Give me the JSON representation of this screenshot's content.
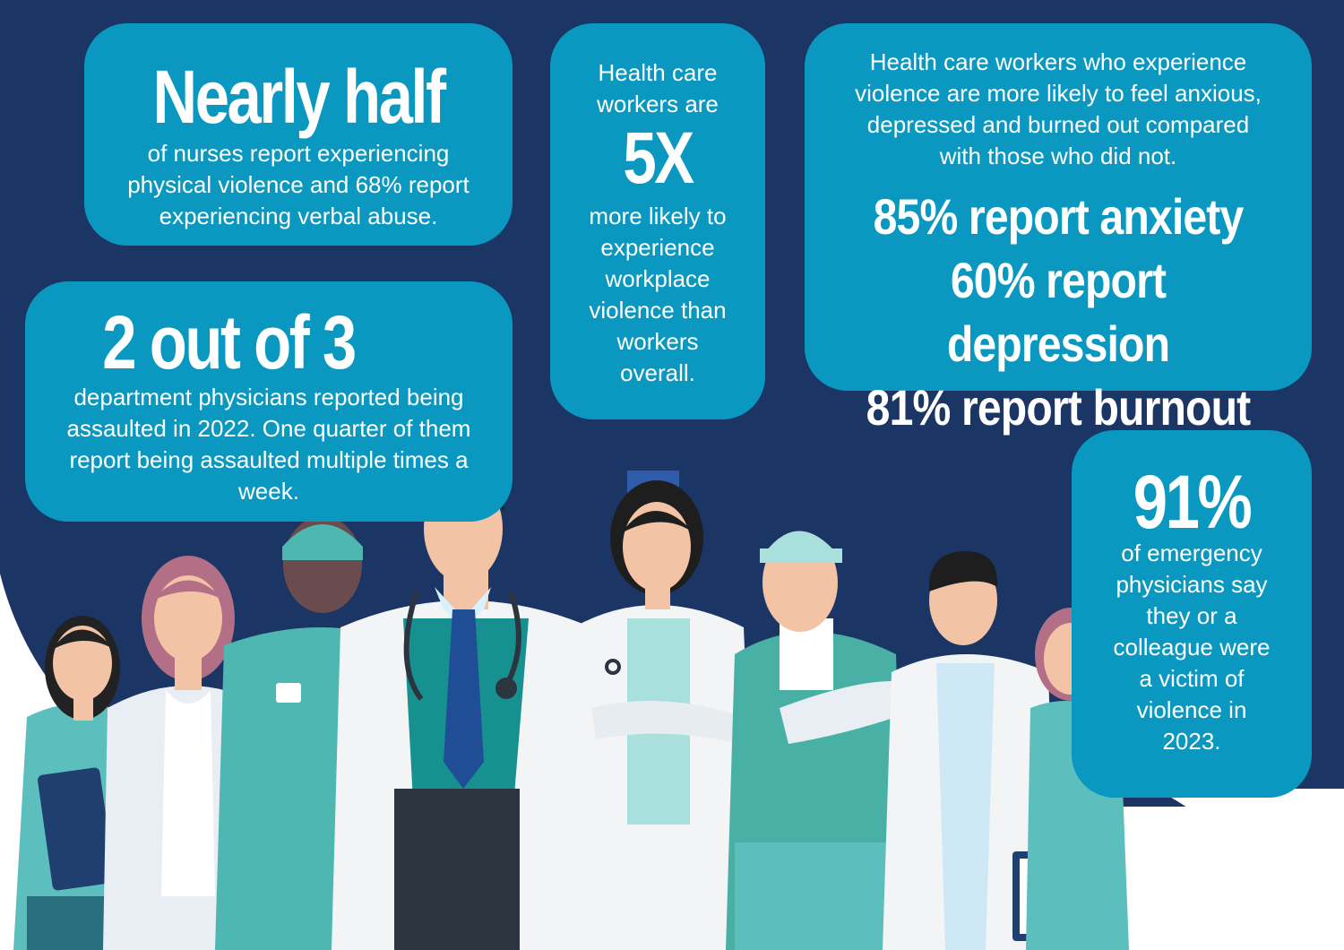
{
  "colors": {
    "background": "#1b3664",
    "callout_box": "#0a98c0",
    "text": "#ffffff",
    "scrubs_teal": "#5dbfbd",
    "coat_white": "#f2f4f5"
  },
  "nearly_half": {
    "headline": "Nearly half",
    "text": "of nurses report experiencing physical violence and 68% report experiencing verbal abuse."
  },
  "two_of_three": {
    "headline": "2 out of 3",
    "text": "department physicians reported being assaulted in 2022. One quarter of them report being assaulted multiple times a week."
  },
  "five_x": {
    "intro": "Health care workers are",
    "headline": "5X",
    "text": "more likely to experience workplace violence than workers overall."
  },
  "mental_health": {
    "intro": "Health care workers who experience violence are more likely to feel anxious, depressed and burned out compared with those who did not.",
    "stats": [
      "85% report anxiety",
      "60% report depression",
      "81% report burnout"
    ]
  },
  "ninety_one": {
    "headline": "91%",
    "text": "of emergency physicians say they or a colleague were a victim of violence in 2023."
  },
  "illustration": {
    "icon": "health-care-workers-group-illustration"
  }
}
